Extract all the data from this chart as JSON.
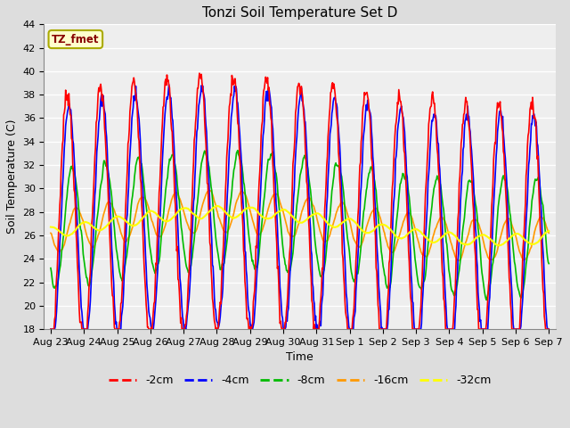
{
  "title": "Tonzi Soil Temperature Set D",
  "xlabel": "Time",
  "ylabel": "Soil Temperature (C)",
  "ylim": [
    18,
    44
  ],
  "series_colors": {
    "-2cm": "#ff0000",
    "-4cm": "#0000ff",
    "-8cm": "#00bb00",
    "-16cm": "#ff9900",
    "-32cm": "#ffff00"
  },
  "legend_label": "TZ_fmet",
  "legend_box_bg": "#ffffcc",
  "legend_box_edge": "#aaaa00",
  "bg_color": "#dddddd",
  "plot_bg": "#eeeeee",
  "x_tick_labels": [
    "Aug 23",
    "Aug 24",
    "Aug 25",
    "Aug 26",
    "Aug 27",
    "Aug 28",
    "Aug 29",
    "Aug 30",
    "Aug 31",
    "Sep 1",
    "Sep 2",
    "Sep 3",
    "Sep 4",
    "Sep 5",
    "Sep 6",
    "Sep 7"
  ]
}
